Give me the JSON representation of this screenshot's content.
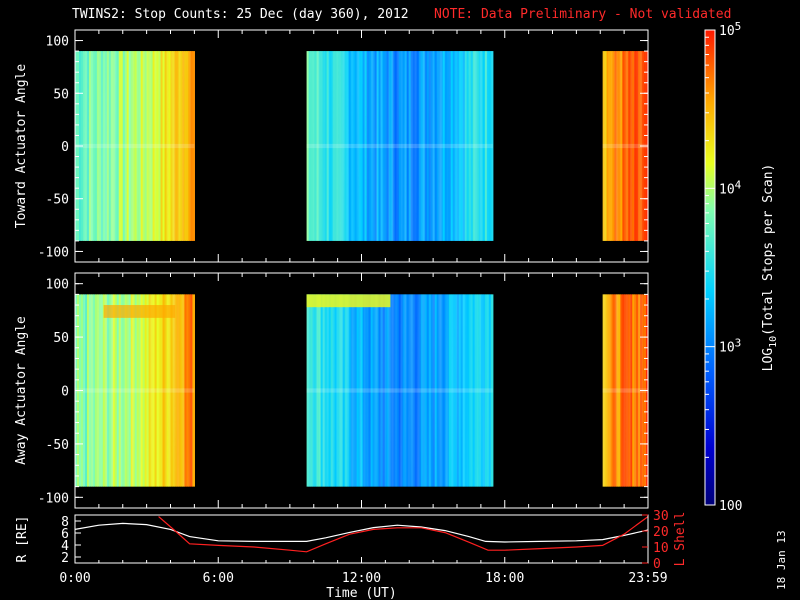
{
  "title": "TWINS2: Stop Counts: 25 Dec (day 360), 2012",
  "note": "NOTE: Data Preliminary - Not validated",
  "date_stamp": "18 Jan 13",
  "colors": {
    "note": "#ff2a2a",
    "background": "#000000",
    "r_line": "#ffffff",
    "l_line": "#ff2020"
  },
  "chart_data": [
    {
      "type": "heatmap",
      "ylabel": "Toward Actuator Angle",
      "ylim": [
        -110,
        110
      ],
      "yticks": [
        "100",
        "50",
        "0",
        "-50",
        "-100"
      ],
      "data_y_range": [
        -90,
        90
      ],
      "xlim": [
        0,
        24
      ],
      "x_units": "hours UT",
      "data_intervals": [
        [
          0,
          5.0
        ],
        [
          9.7,
          17.5
        ],
        [
          22.1,
          24
        ]
      ],
      "level_profile": {
        "x": [
          0,
          1,
          2,
          3,
          4,
          4.8,
          9.7,
          10.5,
          11.5,
          12.5,
          13.5,
          14.5,
          15.5,
          16.5,
          17.5,
          22.1,
          23,
          24
        ],
        "log10_counts": [
          3.75,
          3.85,
          3.95,
          4.05,
          4.3,
          4.6,
          3.75,
          3.55,
          3.35,
          3.15,
          3.05,
          3.1,
          3.25,
          3.45,
          3.55,
          4.5,
          4.7,
          4.8
        ]
      }
    },
    {
      "type": "heatmap",
      "ylabel": "Away Actuator Angle",
      "ylim": [
        -110,
        110
      ],
      "yticks": [
        "100",
        "50",
        "0",
        "-50",
        "-100"
      ],
      "data_y_range": [
        -90,
        90
      ],
      "xlim": [
        0,
        24
      ],
      "x_units": "hours UT",
      "data_intervals": [
        [
          0,
          5.0
        ],
        [
          9.7,
          17.5
        ],
        [
          22.1,
          24
        ]
      ],
      "level_profile": {
        "x": [
          0,
          1,
          2,
          3,
          4,
          4.8,
          9.7,
          10.5,
          11.5,
          12.5,
          13.5,
          14.5,
          15.5,
          16.5,
          17.5,
          22.1,
          23,
          24
        ],
        "log10_counts": [
          3.8,
          3.9,
          4.0,
          4.15,
          4.4,
          4.7,
          3.7,
          3.5,
          3.3,
          3.1,
          3.0,
          3.05,
          3.2,
          3.4,
          3.5,
          4.5,
          4.7,
          4.8
        ]
      }
    },
    {
      "type": "line",
      "ylabel": "R [RE]",
      "y2label": "L Shell",
      "ylim": [
        1,
        9
      ],
      "y2lim": [
        0,
        30
      ],
      "yticks": [
        "8",
        "6",
        "4",
        "2"
      ],
      "y2ticks": [
        "30",
        "20",
        "10",
        "0"
      ],
      "xlabel": "Time (UT)",
      "xticks": [
        "0:00",
        "6:00",
        "12:00",
        "18:00",
        "23:59"
      ],
      "xtick_hours": [
        0,
        6,
        12,
        18,
        24
      ],
      "series": [
        {
          "x": [
            0,
            1,
            2,
            3,
            4,
            4.8,
            6,
            7.5,
            9,
            9.7,
            10.5,
            11.5,
            12.5,
            13.5,
            14.5,
            15.5,
            16.5,
            17.2,
            18,
            19.5,
            21,
            22.1,
            23,
            24
          ],
          "y": [
            6.6,
            7.3,
            7.6,
            7.4,
            6.6,
            5.4,
            4.7,
            4.6,
            4.6,
            4.6,
            5.2,
            6.1,
            6.9,
            7.3,
            7.0,
            6.4,
            5.4,
            4.6,
            4.5,
            4.6,
            4.7,
            4.9,
            5.6,
            6.5
          ]
        },
        {
          "x": [
            3.5,
            4.2,
            4.8,
            6,
            7.5,
            9,
            9.7,
            10.5,
            11.5,
            12.5,
            13.5,
            14.5,
            15.5,
            16.5,
            17.3,
            18,
            19.5,
            21,
            22.1,
            23,
            24
          ],
          "y2": [
            29,
            20,
            12,
            11,
            10,
            8,
            7,
            12,
            18,
            21,
            22,
            22,
            19,
            13,
            8,
            8,
            9,
            10,
            11,
            18,
            29
          ]
        }
      ]
    }
  ],
  "colorbar": {
    "label_prefix": "LOG",
    "label_sub": "10",
    "label_suffix": "(Total Stops per Scan)",
    "range_log10": [
      2,
      5
    ],
    "ticks": [
      {
        "base": "10",
        "exp": "5",
        "value": 5
      },
      {
        "base": "10",
        "exp": "4",
        "value": 4
      },
      {
        "base": "10",
        "exp": "3",
        "value": 3
      },
      {
        "base": "100",
        "exp": "",
        "value": 2
      }
    ]
  }
}
